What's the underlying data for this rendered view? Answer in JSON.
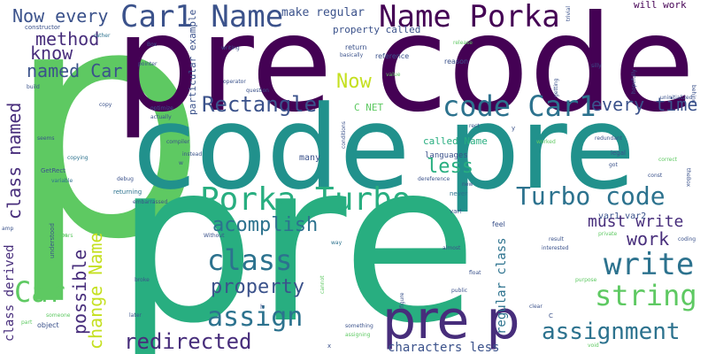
{
  "colors": {
    "background": "#ffffff",
    "purple": "#440154",
    "indigo": "#472d7b",
    "blue": "#3b528b",
    "slate": "#2c728e",
    "teal": "#21918c",
    "green": "#28ae80",
    "lime": "#5ec962",
    "yellow": "#c5e021"
  },
  "words": {
    "p": "p",
    "pre_code": "pre code",
    "code_pre": "code pre",
    "pre_p": "pre p",
    "pre": "pre",
    "car1_name": "Car1 Name",
    "name_porka": "Name Porka",
    "now_every": "Now every",
    "method": "method",
    "know": "know",
    "named_car": "named Car",
    "class_named": "class named",
    "porka_turbo": "Porka Turbo",
    "turbo_code": "Turbo code",
    "code_car1": "code Car1",
    "rectangle": "Rectangle",
    "every_time": "every time",
    "acomplish": "acomplish",
    "class": "class",
    "write": "write",
    "string": "string",
    "assign": "assign",
    "assignment": "assignment",
    "redirected": "redirected",
    "car": "Car",
    "property": "property",
    "work": "work",
    "must_write": "must write",
    "less": "less",
    "now": "Now",
    "change_name": "change Name",
    "possible": "possible",
    "class_derived": "class derived",
    "characters_less": "characters less",
    "regular_class": "regular class",
    "make_regular": "make regular",
    "property_called": "property called",
    "called_name": "called Name",
    "will_work": "will work",
    "c_net": "C NET",
    "var1_var2": "var1 var2",
    "particular_example": "particular example",
    "many": "many",
    "languages": "languages",
    "constructor": "constructor",
    "rather": "rather",
    "build": "build",
    "copy": "copy",
    "seems": "seems",
    "copying": "copying",
    "getrect": "GetRect",
    "variable": "variable",
    "returning": "returning",
    "embarrassed": "embarrassed",
    "compiler": "compiler",
    "instead": "instead",
    "debug": "debug",
    "optimize": "optimize",
    "actually": "actually",
    "pointer": "pointer",
    "box": "Box",
    "writing": "writing",
    "operator": "operator",
    "question": "question",
    "return": "return",
    "reference": "reference",
    "basically": "basically",
    "reason": "reason",
    "value": "value",
    "release": "release",
    "trivial": "trivial",
    "hopefully": "hopefully",
    "silly": "silly",
    "uninitialized": "uninitialized",
    "getting": "getting",
    "behind": "behind",
    "conditions": "conditions",
    "rect": "rect",
    "y": "y",
    "worked": "worked",
    "redundant": "redundant",
    "legal": "legal",
    "got": "got",
    "const": "const",
    "correct": "correct",
    "thebox": "theBox",
    "dereference": "dereference",
    "new": "new",
    "never": "never",
    "var": "var!",
    "feel": "feel",
    "result": "result",
    "private": "private",
    "interested": "interested",
    "coding": "coding",
    "purpose": "purpose",
    "almost": "almost",
    "float": "float",
    "public": "public",
    "clear": "clear",
    "c": "C",
    "void": "void",
    "figure": "figure",
    "something": "something",
    "assigning": "assigning",
    "x": "x",
    "later": "later",
    "h": "h",
    "broke": "broke",
    "way": "way",
    "without": "Without",
    "amp": "amp",
    "years": "years",
    "understood": "understood",
    "someone": "someone",
    "part": "part",
    "object": "object",
    "it": "It",
    "ok": "Ok",
    "w": "w",
    "home": "home",
    "cannot": "cannot",
    "faster": "faster",
    "x2": "x",
    "ii": "ii"
  }
}
